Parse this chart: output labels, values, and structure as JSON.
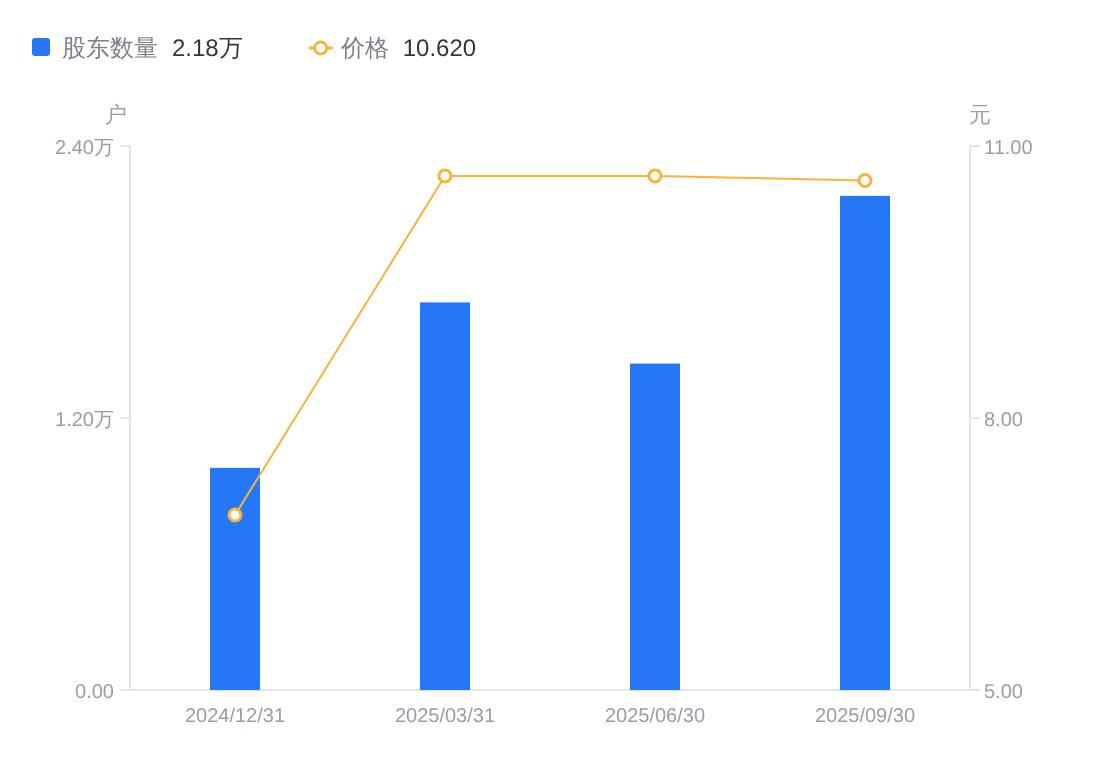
{
  "chart_data": {
    "type": "bar",
    "ylabel": "户",
    "y2label": "元",
    "legend": "top left",
    "annotations": [
      "2.18万",
      "10.620"
    ],
    "categories": [
      "2024/12/31",
      "2025/03/31",
      "2025/06/30",
      "2025/09/30"
    ],
    "series": [
      {
        "name": "股东数量",
        "color": "#2577f5",
        "values": [
          0.98,
          1.71,
          1.44,
          2.18
        ]
      },
      {
        "name": "价格",
        "type": "line",
        "axis": "y2",
        "color": "#f8b33c",
        "marker": "circle",
        "values": [
          6.93,
          10.67,
          10.67,
          10.62
        ]
      }
    ],
    "ylim": [
      0,
      2.4
    ],
    "yticks": [
      {
        "value": 0,
        "label": "0.00"
      },
      {
        "value": 1.2,
        "label": "1.20万"
      },
      {
        "value": 2.4,
        "label": "2.40万"
      }
    ],
    "y2lim": [
      5,
      11
    ],
    "y2ticks": [
      {
        "value": 5,
        "label": "5.00"
      },
      {
        "value": 8,
        "label": "8.00"
      },
      {
        "value": 11,
        "label": "11.00"
      }
    ]
  }
}
